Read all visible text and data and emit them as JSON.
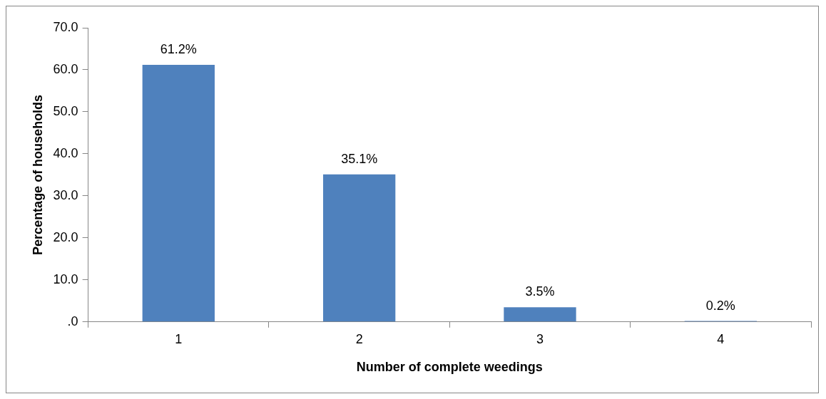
{
  "chart_data": {
    "type": "bar",
    "xlabel": "Number of complete weedings",
    "ylabel": "Percentage of households",
    "categories": [
      "1",
      "2",
      "3",
      "4"
    ],
    "values": [
      61.2,
      35.1,
      3.5,
      0.2
    ],
    "color": "#4f81bd",
    "value_labels": [
      "61.2%",
      "35.1%",
      "3.5%",
      "0.2%"
    ],
    "ylim": [
      0,
      70
    ],
    "yticks": [
      {
        "value": 0,
        "label": ".0"
      },
      {
        "value": 10,
        "label": "10.0"
      },
      {
        "value": 20,
        "label": "20.0"
      },
      {
        "value": 30,
        "label": "30.0"
      },
      {
        "value": 40,
        "label": "40.0"
      },
      {
        "value": 50,
        "label": "50.0"
      },
      {
        "value": 60,
        "label": "60.0"
      },
      {
        "value": 70,
        "label": "70.0"
      }
    ],
    "grid": false,
    "legend": false
  }
}
